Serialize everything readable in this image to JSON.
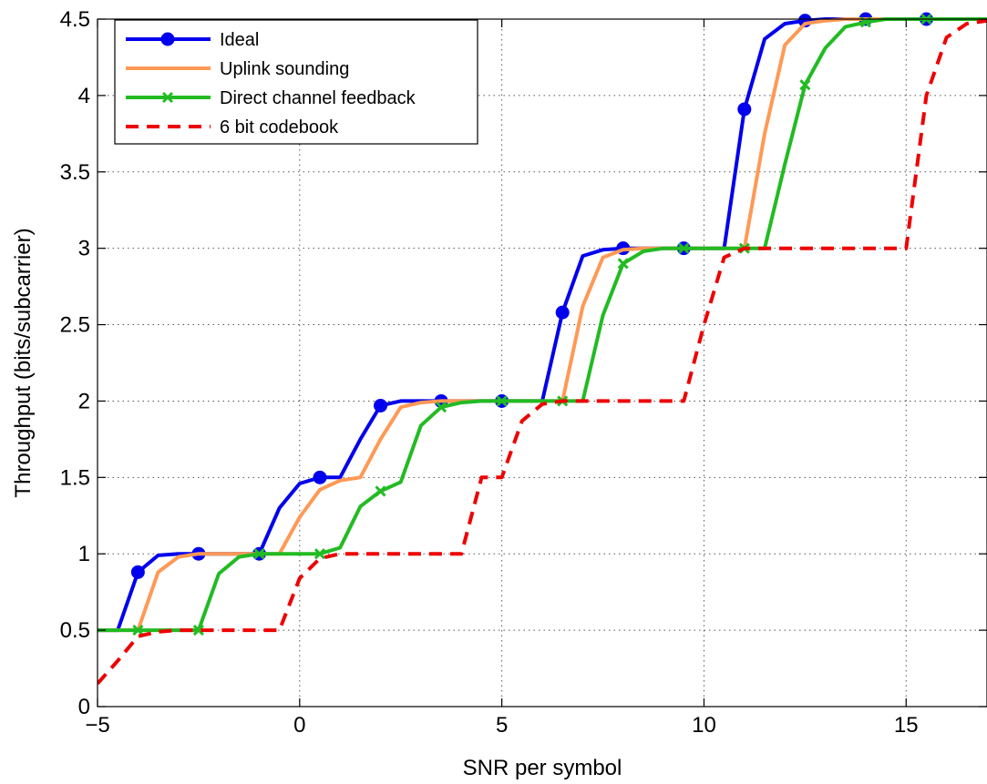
{
  "chart_data": {
    "type": "line",
    "title": "",
    "xlabel": "SNR per symbol",
    "ylabel": "Throughput (bits/subcarrier)",
    "xlim": [
      -5,
      17
    ],
    "ylim": [
      0,
      4.5
    ],
    "xticks": [
      -5,
      0,
      5,
      10,
      15
    ],
    "xtick_labels": [
      "−5",
      "0",
      "5",
      "10",
      "15"
    ],
    "yticks": [
      0,
      0.5,
      1,
      1.5,
      2,
      2.5,
      3,
      3.5,
      4,
      4.5
    ],
    "ytick_labels": [
      "0",
      "0.5",
      "1",
      "1.5",
      "2",
      "2.5",
      "3",
      "3.5",
      "4",
      "4.5"
    ],
    "grid": true,
    "legend_position": "top-left",
    "series": [
      {
        "name": "Ideal",
        "color": "#0000ee",
        "line_style": "solid",
        "marker": "circle",
        "x": [
          -5,
          -4.5,
          -4,
          -3.5,
          -3,
          -2.5,
          -2,
          -1.5,
          -1,
          -0.5,
          0,
          0.5,
          1,
          1.5,
          2,
          2.5,
          3,
          3.5,
          4,
          4.5,
          5,
          5.5,
          6,
          6.5,
          7,
          7.5,
          8,
          8.5,
          9,
          9.5,
          10,
          10.5,
          11,
          11.5,
          12,
          12.5,
          13,
          13.5,
          14,
          14.5,
          15,
          15.5,
          16,
          16.5,
          17
        ],
        "y": [
          0.5,
          0.5,
          0.88,
          0.99,
          1.0,
          1.0,
          1.0,
          1.0,
          1.0,
          1.3,
          1.46,
          1.5,
          1.5,
          1.75,
          1.97,
          2.0,
          2.0,
          2.0,
          2.0,
          2.0,
          2.0,
          2.0,
          2.0,
          2.58,
          2.95,
          2.99,
          3.0,
          3.0,
          3.0,
          3.0,
          3.0,
          3.0,
          3.91,
          4.37,
          4.47,
          4.49,
          4.5,
          4.5,
          4.5,
          4.5,
          4.5,
          4.5,
          4.5,
          4.5,
          4.5
        ],
        "marker_x": [
          -4,
          -2.5,
          -1,
          0.5,
          2,
          3.5,
          5,
          6.5,
          8,
          9.5,
          11,
          12.5,
          14,
          15.5
        ]
      },
      {
        "name": "Uplink sounding",
        "color": "#ff9955",
        "line_style": "solid",
        "marker": "none",
        "x": [
          -5,
          -4,
          -3.5,
          -3,
          -2.5,
          -2,
          -1.5,
          -1,
          -0.5,
          0,
          0.5,
          1,
          1.5,
          2,
          2.5,
          3,
          3.5,
          4,
          4.5,
          5,
          5.5,
          6,
          6.5,
          7,
          7.5,
          8,
          8.5,
          9,
          9.5,
          10,
          10.5,
          11,
          11.5,
          12,
          12.5,
          13,
          13.5,
          14,
          14.5,
          15,
          15.5,
          16,
          16.5,
          17
        ],
        "y": [
          0.5,
          0.5,
          0.88,
          0.98,
          1.0,
          1.0,
          1.0,
          1.0,
          1.0,
          1.24,
          1.42,
          1.48,
          1.5,
          1.75,
          1.96,
          1.99,
          2.0,
          2.0,
          2.0,
          2.0,
          2.0,
          2.0,
          2.0,
          2.62,
          2.94,
          2.99,
          3.0,
          3.0,
          3.0,
          3.0,
          3.0,
          3.0,
          3.75,
          4.33,
          4.47,
          4.49,
          4.5,
          4.5,
          4.5,
          4.5,
          4.5,
          4.5,
          4.5,
          4.5
        ]
      },
      {
        "name": "Direct channel feedback",
        "color": "#22bb22",
        "line_style": "solid",
        "marker": "x",
        "x": [
          -5,
          -4.5,
          -4,
          -3.5,
          -3,
          -2.5,
          -2,
          -1.5,
          -1,
          -0.5,
          0,
          0.5,
          1,
          1.5,
          2,
          2.5,
          3,
          3.5,
          4,
          4.5,
          5,
          5.5,
          6,
          6.5,
          7,
          7.5,
          8,
          8.5,
          9,
          9.5,
          10,
          10.5,
          11,
          11.5,
          12,
          12.5,
          13,
          13.5,
          14,
          14.5,
          15,
          15.5,
          16,
          16.5,
          17
        ],
        "y": [
          0.5,
          0.5,
          0.5,
          0.5,
          0.5,
          0.5,
          0.87,
          0.98,
          1.0,
          1.0,
          1.0,
          1.0,
          1.04,
          1.31,
          1.41,
          1.47,
          1.84,
          1.96,
          1.99,
          2.0,
          2.0,
          2.0,
          2.0,
          2.0,
          2.0,
          2.56,
          2.9,
          2.98,
          3.0,
          3.0,
          3.0,
          3.0,
          3.0,
          3.0,
          3.55,
          4.07,
          4.31,
          4.45,
          4.48,
          4.5,
          4.5,
          4.5,
          4.5,
          4.5,
          4.5
        ],
        "marker_x": [
          -4,
          -2.5,
          -1,
          0.5,
          2,
          3.5,
          5,
          6.5,
          8,
          9.5,
          11,
          12.5,
          14,
          15.5
        ]
      },
      {
        "name": "6 bit codebook",
        "color": "#ee0000",
        "line_style": "dashed",
        "marker": "none",
        "x": [
          -5,
          -4.5,
          -4,
          -3.5,
          -3,
          -2.5,
          -2,
          -1.5,
          -1,
          -0.5,
          0,
          0.5,
          1,
          1.5,
          2,
          2.5,
          3,
          3.5,
          4,
          4.5,
          5,
          5.5,
          6,
          6.5,
          7,
          7.5,
          8,
          8.5,
          9,
          9.5,
          10,
          10.5,
          11,
          11.5,
          12,
          12.5,
          13,
          13.5,
          14,
          14.5,
          15,
          15.5,
          16,
          16.5,
          17
        ],
        "y": [
          0.15,
          0.3,
          0.46,
          0.49,
          0.5,
          0.5,
          0.5,
          0.5,
          0.5,
          0.5,
          0.84,
          0.97,
          1.0,
          1.0,
          1.0,
          1.0,
          1.0,
          1.0,
          1.0,
          1.5,
          1.5,
          1.87,
          1.98,
          2.0,
          2.0,
          2.0,
          2.0,
          2.0,
          2.0,
          2.0,
          2.5,
          2.94,
          3.0,
          3.0,
          3.0,
          3.0,
          3.0,
          3.0,
          3.0,
          3.0,
          3.0,
          4.0,
          4.38,
          4.47,
          4.49
        ]
      }
    ]
  }
}
